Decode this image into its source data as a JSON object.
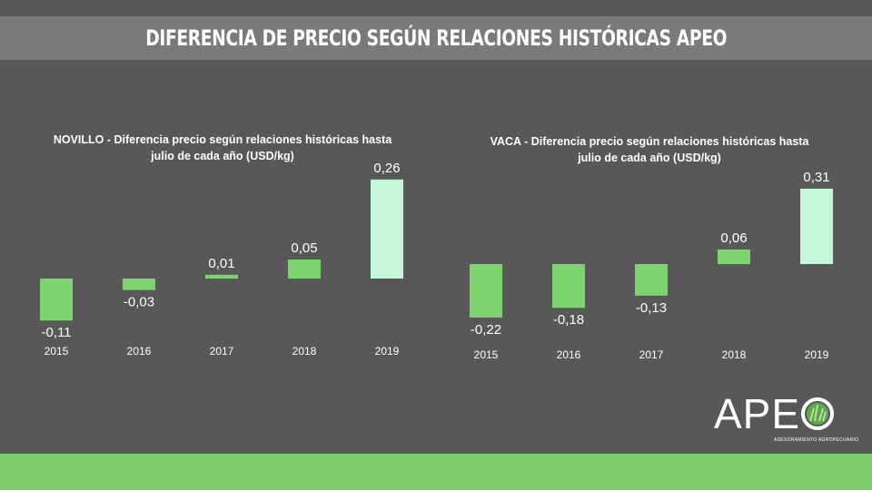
{
  "header": {
    "title": "DIFERENCIA DE PRECIO SEGÚN RELACIONES HISTÓRICAS APEO"
  },
  "logo": {
    "text": "APE",
    "subtitle": "ASESORAMIENTO AGROPECUARIO",
    "icon": "apeo-leaf-icon"
  },
  "colors": {
    "bar": "#7dd36e",
    "bar_highlight": "#c6f7d9",
    "background": "#585858",
    "banner": "#7a7a7a",
    "footer": "#7ccf6c"
  },
  "chart_data": [
    {
      "type": "bar",
      "title": "NOVILLO - Diferencia precio según relaciones históricas  hasta julio de cada año (USD/kg)",
      "title_lines": [
        "NOVILLO - Diferencia precio según relaciones históricas  hasta",
        "julio de cada año (USD/kg)"
      ],
      "categories": [
        "2015",
        "2016",
        "2017",
        "2018",
        "2019"
      ],
      "values": [
        -0.11,
        -0.03,
        0.01,
        0.05,
        0.26
      ],
      "labels": [
        "-0,11",
        "-0,03",
        "0,01",
        "0,05",
        "0,26"
      ],
      "highlight_index": 4,
      "grid": false,
      "legend": "none"
    },
    {
      "type": "bar",
      "title": "VACA - Diferencia precio según relaciones históricas  hasta julio de cada año (USD/kg)",
      "title_lines": [
        "VACA - Diferencia precio según relaciones históricas  hasta",
        "julio de cada año (USD/kg)"
      ],
      "categories": [
        "2015",
        "2016",
        "2017",
        "2018",
        "2019"
      ],
      "values": [
        -0.22,
        -0.18,
        -0.13,
        0.06,
        0.31
      ],
      "labels": [
        "-0,22",
        "-0,18",
        "-0,13",
        "0,06",
        "0,31"
      ],
      "highlight_index": 4,
      "grid": false,
      "legend": "none"
    }
  ]
}
